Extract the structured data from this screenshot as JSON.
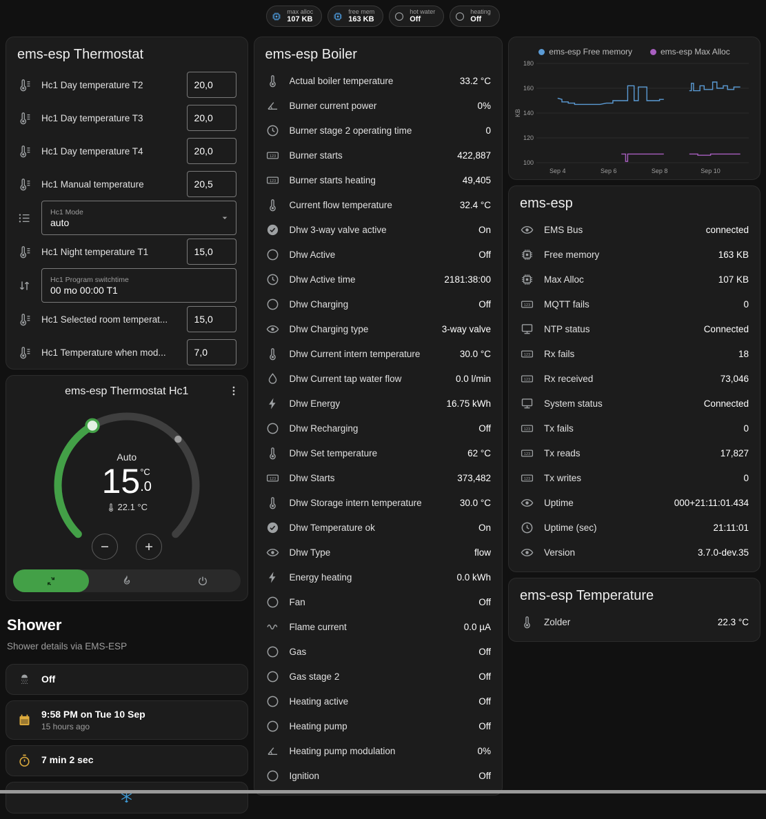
{
  "topbar": {
    "chips": [
      {
        "icon": "memory",
        "icon_color": "#4e9de0",
        "label": "max alloc",
        "value": "107 KB"
      },
      {
        "icon": "memory",
        "icon_color": "#4e9de0",
        "label": "free mem",
        "value": "163 KB"
      },
      {
        "icon": "circle",
        "icon_color": "#9da0a2",
        "label": "hot water",
        "value": "Off"
      },
      {
        "icon": "circle",
        "icon_color": "#9da0a2",
        "label": "heating",
        "value": "Off"
      }
    ]
  },
  "thermostat_card": {
    "title": "ems-esp Thermostat",
    "rows": [
      {
        "icon": "thermometer-lines",
        "label": "Hc1 Day temperature T2",
        "type": "number",
        "value": "20,0"
      },
      {
        "icon": "thermometer-lines",
        "label": "Hc1 Day temperature T3",
        "type": "number",
        "value": "20,0"
      },
      {
        "icon": "thermometer-lines",
        "label": "Hc1 Day temperature T4",
        "type": "number",
        "value": "20,0"
      },
      {
        "icon": "thermometer-lines",
        "label": "Hc1 Manual temperature",
        "type": "number",
        "value": "20,5"
      },
      {
        "icon": "menu",
        "label": "Hc1 Mode",
        "type": "select",
        "value": "auto"
      },
      {
        "icon": "thermometer-lines",
        "label": "Hc1 Night temperature T1",
        "type": "number",
        "value": "15,0"
      },
      {
        "icon": "swap",
        "label": "Hc1 Program switchtime",
        "type": "text",
        "value": "00 mo 00:00 T1"
      },
      {
        "icon": "thermometer-lines",
        "label": "Hc1 Selected room temperat...",
        "type": "number",
        "value": "15,0"
      },
      {
        "icon": "thermometer-lines",
        "label": "Hc1 Temperature when mod...",
        "type": "number",
        "value": "7,0"
      }
    ]
  },
  "thermostat_hc1": {
    "title": "ems-esp Thermostat Hc1",
    "hvac_label": "Auto",
    "temp_whole": "15",
    "temp_decimal": ".0",
    "unit": "°C",
    "current_temp": "22.1 °C",
    "modes": [
      {
        "icon": "autorenew",
        "name": "auto",
        "active": true
      },
      {
        "icon": "flame",
        "name": "heat",
        "active": false
      },
      {
        "icon": "power",
        "name": "off",
        "active": false
      }
    ]
  },
  "shower": {
    "title": "Shower",
    "subtitle": "Shower details via EMS-ESP",
    "cards": [
      {
        "icon": "shower-head",
        "icon_color": "#9da0a2",
        "primary": "Off",
        "secondary": ""
      },
      {
        "icon": "calendar",
        "icon_color": "#ddab3d",
        "primary": "9:58 PM on Tue 10 Sep",
        "secondary": "15 hours ago"
      },
      {
        "icon": "timer",
        "icon_color": "#ddab3d",
        "primary": "7 min 2 sec",
        "secondary": ""
      }
    ],
    "partial_icon": "snowflake",
    "partial_icon_color": "#3e9ad6"
  },
  "boiler_card": {
    "title": "ems-esp Boiler",
    "rows": [
      {
        "icon": "thermometer",
        "label": "Actual boiler temperature",
        "value": "33.2 °C"
      },
      {
        "icon": "angle",
        "label": "Burner current power",
        "value": "0%"
      },
      {
        "icon": "clock",
        "label": "Burner stage 2 operating time",
        "value": "0"
      },
      {
        "icon": "counter",
        "label": "Burner starts",
        "value": "422,887"
      },
      {
        "icon": "counter",
        "label": "Burner starts heating",
        "value": "49,405"
      },
      {
        "icon": "thermometer",
        "label": "Current flow temperature",
        "value": "32.4 °C"
      },
      {
        "icon": "check-circle",
        "label": "Dhw 3-way valve active",
        "value": "On"
      },
      {
        "icon": "circle",
        "label": "Dhw Active",
        "value": "Off"
      },
      {
        "icon": "clock",
        "label": "Dhw Active time",
        "value": "2181:38:00"
      },
      {
        "icon": "circle",
        "label": "Dhw Charging",
        "value": "Off"
      },
      {
        "icon": "eye",
        "label": "Dhw Charging type",
        "value": "3-way valve"
      },
      {
        "icon": "thermometer",
        "label": "Dhw Current intern temperature",
        "value": "30.0 °C"
      },
      {
        "icon": "water",
        "label": "Dhw Current tap water flow",
        "value": "0.0 l/min"
      },
      {
        "icon": "flash",
        "label": "Dhw Energy",
        "value": "16.75 kWh"
      },
      {
        "icon": "circle",
        "label": "Dhw Recharging",
        "value": "Off"
      },
      {
        "icon": "thermometer",
        "label": "Dhw Set temperature",
        "value": "62 °C"
      },
      {
        "icon": "counter",
        "label": "Dhw Starts",
        "value": "373,482"
      },
      {
        "icon": "thermometer",
        "label": "Dhw Storage intern temperature",
        "value": "30.0 °C"
      },
      {
        "icon": "check-circle",
        "label": "Dhw Temperature ok",
        "value": "On"
      },
      {
        "icon": "eye",
        "label": "Dhw Type",
        "value": "flow"
      },
      {
        "icon": "flash",
        "label": "Energy heating",
        "value": "0.0 kWh"
      },
      {
        "icon": "circle",
        "label": "Fan",
        "value": "Off"
      },
      {
        "icon": "current",
        "label": "Flame current",
        "value": "0.0 µA"
      },
      {
        "icon": "circle",
        "label": "Gas",
        "value": "Off"
      },
      {
        "icon": "circle",
        "label": "Gas stage 2",
        "value": "Off"
      },
      {
        "icon": "circle",
        "label": "Heating active",
        "value": "Off"
      },
      {
        "icon": "circle",
        "label": "Heating pump",
        "value": "Off"
      },
      {
        "icon": "angle",
        "label": "Heating pump modulation",
        "value": "0%"
      },
      {
        "icon": "circle",
        "label": "Ignition",
        "value": "Off"
      }
    ]
  },
  "chart_data": {
    "type": "line",
    "title": "",
    "ylabel": "KB",
    "ylim": [
      100,
      180
    ],
    "yticks": [
      100,
      120,
      140,
      160,
      180
    ],
    "xtick_labels": [
      "Sep 4",
      "Sep 6",
      "Sep 8",
      "Sep 10"
    ],
    "xtick_positions": [
      10,
      34,
      58,
      82
    ],
    "grid": true,
    "legend_position": "top",
    "legend": [
      {
        "name": "ems-esp Free memory",
        "color": "#5b9bd5"
      },
      {
        "name": "ems-esp Max Alloc",
        "color": "#a85fc0"
      }
    ],
    "series": [
      {
        "name": "ems-esp Free memory",
        "color": "#5b9bd5",
        "segments": [
          [
            [
              10,
              152
            ],
            [
              12,
              151
            ],
            [
              12,
              149
            ],
            [
              15,
              149
            ],
            [
              15,
              148
            ],
            [
              18,
              148
            ],
            [
              18,
              147
            ],
            [
              27,
              147
            ],
            [
              30,
              147
            ],
            [
              33,
              148
            ],
            [
              36,
              148
            ],
            [
              36,
              150
            ],
            [
              40,
              150
            ],
            [
              43,
              150
            ],
            [
              43,
              162
            ],
            [
              46,
              162
            ],
            [
              46,
              150
            ],
            [
              48,
              150
            ],
            [
              48,
              161
            ],
            [
              52,
              161
            ],
            [
              52,
              150
            ],
            [
              55,
              150
            ],
            [
              58,
              150
            ],
            [
              58,
              151
            ],
            [
              60,
              151
            ]
          ],
          [
            [
              72,
              158
            ],
            [
              73,
              158
            ],
            [
              73,
              164
            ],
            [
              74,
              164
            ],
            [
              74,
              158
            ],
            [
              77,
              158
            ],
            [
              77,
              162
            ],
            [
              79,
              162
            ],
            [
              79,
              159
            ],
            [
              83,
              159
            ],
            [
              83,
              165
            ],
            [
              85,
              165
            ],
            [
              85,
              160
            ],
            [
              88,
              160
            ],
            [
              88,
              162
            ],
            [
              90,
              162
            ],
            [
              90,
              159
            ],
            [
              93,
              159
            ],
            [
              93,
              161
            ],
            [
              96,
              161
            ]
          ]
        ]
      },
      {
        "name": "ems-esp Max Alloc",
        "color": "#a85fc0",
        "segments": [
          [
            [
              40,
              107
            ],
            [
              42,
              107
            ],
            [
              42,
              101
            ],
            [
              43,
              101
            ],
            [
              43,
              107
            ],
            [
              58,
              107
            ],
            [
              60,
              107
            ]
          ],
          [
            [
              72,
              107
            ],
            [
              76,
              107
            ],
            [
              76,
              106
            ],
            [
              82,
              106
            ],
            [
              82,
              107
            ],
            [
              96,
              107
            ]
          ]
        ]
      }
    ]
  },
  "ems_card": {
    "title": "ems-esp",
    "rows": [
      {
        "icon": "eye",
        "label": "EMS Bus",
        "value": "connected"
      },
      {
        "icon": "memory",
        "label": "Free memory",
        "value": "163 KB"
      },
      {
        "icon": "memory",
        "label": "Max Alloc",
        "value": "107 KB"
      },
      {
        "icon": "counter",
        "label": "MQTT fails",
        "value": "0"
      },
      {
        "icon": "network",
        "label": "NTP status",
        "value": "Connected"
      },
      {
        "icon": "counter",
        "label": "Rx fails",
        "value": "18"
      },
      {
        "icon": "counter",
        "label": "Rx received",
        "value": "73,046"
      },
      {
        "icon": "network",
        "label": "System status",
        "value": "Connected"
      },
      {
        "icon": "counter",
        "label": "Tx fails",
        "value": "0"
      },
      {
        "icon": "counter",
        "label": "Tx reads",
        "value": "17,827"
      },
      {
        "icon": "counter",
        "label": "Tx writes",
        "value": "0"
      },
      {
        "icon": "eye",
        "label": "Uptime",
        "value": "000+21:11:01.434"
      },
      {
        "icon": "clock",
        "label": "Uptime (sec)",
        "value": "21:11:01"
      },
      {
        "icon": "eye",
        "label": "Version",
        "value": "3.7.0-dev.35"
      }
    ]
  },
  "temperature_card": {
    "title": "ems-esp Temperature",
    "rows": [
      {
        "icon": "thermometer",
        "label": "Zolder",
        "value": "22.3 °C"
      }
    ]
  }
}
